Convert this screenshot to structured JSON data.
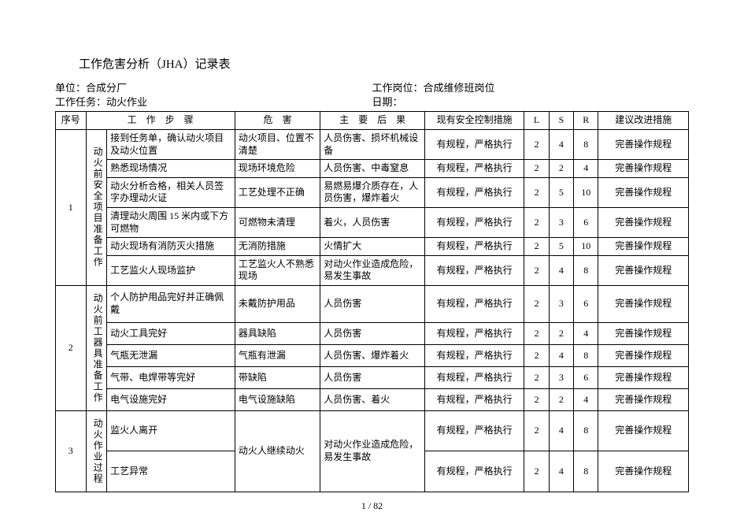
{
  "title": "工作危害分析（JHA）记录表",
  "meta": {
    "left1_label": "单位：",
    "left1_value": "合成分厂",
    "left2_label": "工作任务：",
    "left2_value": "动火作业",
    "right1_label": "工作岗位：",
    "right1_value": "合成维修班岗位",
    "right2_label": "日期："
  },
  "headers": {
    "seq": "序号",
    "step": "工　作　步　骤",
    "hazard": "危　害",
    "result": "主　要　后　果",
    "control": "现有安全控制措施",
    "l": "L",
    "s": "S",
    "r": "R",
    "rec": "建议改进措施"
  },
  "groups": [
    {
      "seq": "1",
      "name": "动火前安全项目准备工作",
      "rows": [
        {
          "step": "接到任务单，确认动火项目及动火位置",
          "hazard": "动火项目、位置不清楚",
          "result": "人员伤害、损坏机械设备",
          "control": "有规程，严格执行",
          "l": "2",
          "s": "4",
          "r": "8",
          "rec": "完善操作规程"
        },
        {
          "step": "熟悉现场情况",
          "hazard": "现场环境危险",
          "result": "人员伤害、中毒窒息",
          "control": "有规程，严格执行",
          "l": "2",
          "s": "2",
          "r": "4",
          "rec": "完善操作规程"
        },
        {
          "step": "动火分析合格，相关人员签字办理动火证",
          "hazard": "工艺处理不正确",
          "result": "易燃易爆介质存在，人员伤害，爆炸着火",
          "control": "有规程，严格执行",
          "l": "2",
          "s": "5",
          "r": "10",
          "rec": "完善操作规程"
        },
        {
          "step": "清理动火周围 15 米内或下方可燃物",
          "hazard": "可燃物未清理",
          "result": "着火，人员伤害",
          "control": "有规程，严格执行",
          "l": "2",
          "s": "3",
          "r": "6",
          "rec": "完善操作规程"
        },
        {
          "step": "动火现场有消防灭火措施",
          "hazard": "无消防措施",
          "result": "火情扩大",
          "control": "有规程，严格执行",
          "l": "2",
          "s": "5",
          "r": "10",
          "rec": "完善操作规程"
        },
        {
          "step": "工艺监火人现场监护",
          "hazard": "工艺监火人不熟悉现场",
          "result": "对动火作业造成危险，易发生事故",
          "control": "有规程，严格执行",
          "l": "2",
          "s": "4",
          "r": "8",
          "rec": "完善操作规程"
        }
      ]
    },
    {
      "seq": "2",
      "name": "动火前工器具准备工作",
      "rows": [
        {
          "step": "个人防护用品完好并正确佩戴",
          "hazard": "未戴防护用品",
          "result": "人员伤害",
          "control": "有规程，严格执行",
          "l": "2",
          "s": "3",
          "r": "6",
          "rec": "完善操作规程"
        },
        {
          "step": "动火工具完好",
          "hazard": "器具缺陷",
          "result": "人员伤害",
          "control": "有规程，严格执行",
          "l": "2",
          "s": "2",
          "r": "4",
          "rec": "完善操作规程"
        },
        {
          "step": "气瓶无泄漏",
          "hazard": "气瓶有泄漏",
          "result": "人员伤害、爆炸着火",
          "control": "有规程，严格执行",
          "l": "2",
          "s": "4",
          "r": "8",
          "rec": "完善操作规程"
        },
        {
          "step": "气带、电焊带等完好",
          "hazard": "带缺陷",
          "result": "人员伤害",
          "control": "有规程，严格执行",
          "l": "2",
          "s": "3",
          "r": "6",
          "rec": "完善操作规程"
        },
        {
          "step": "电气设施完好",
          "hazard": "电气设施缺陷",
          "result": "人员伤害、着火",
          "control": "有规程，严格执行",
          "l": "2",
          "s": "2",
          "r": "4",
          "rec": "完善操作规程"
        }
      ]
    },
    {
      "seq": "3",
      "name": "动火作业过程",
      "mergedHazard": "动火人继续动火",
      "mergedResult": "对动火作业造成危险，易发生事故",
      "rows": [
        {
          "step": "监火人离开",
          "control": "有规程，严格执行",
          "l": "2",
          "s": "4",
          "r": "8",
          "rec": "完善操作规程"
        },
        {
          "step": "工艺异常",
          "control": "有规程，严格执行",
          "l": "2",
          "s": "4",
          "r": "8",
          "rec": "完善操作规程"
        }
      ]
    }
  ],
  "page": "1 / 82"
}
